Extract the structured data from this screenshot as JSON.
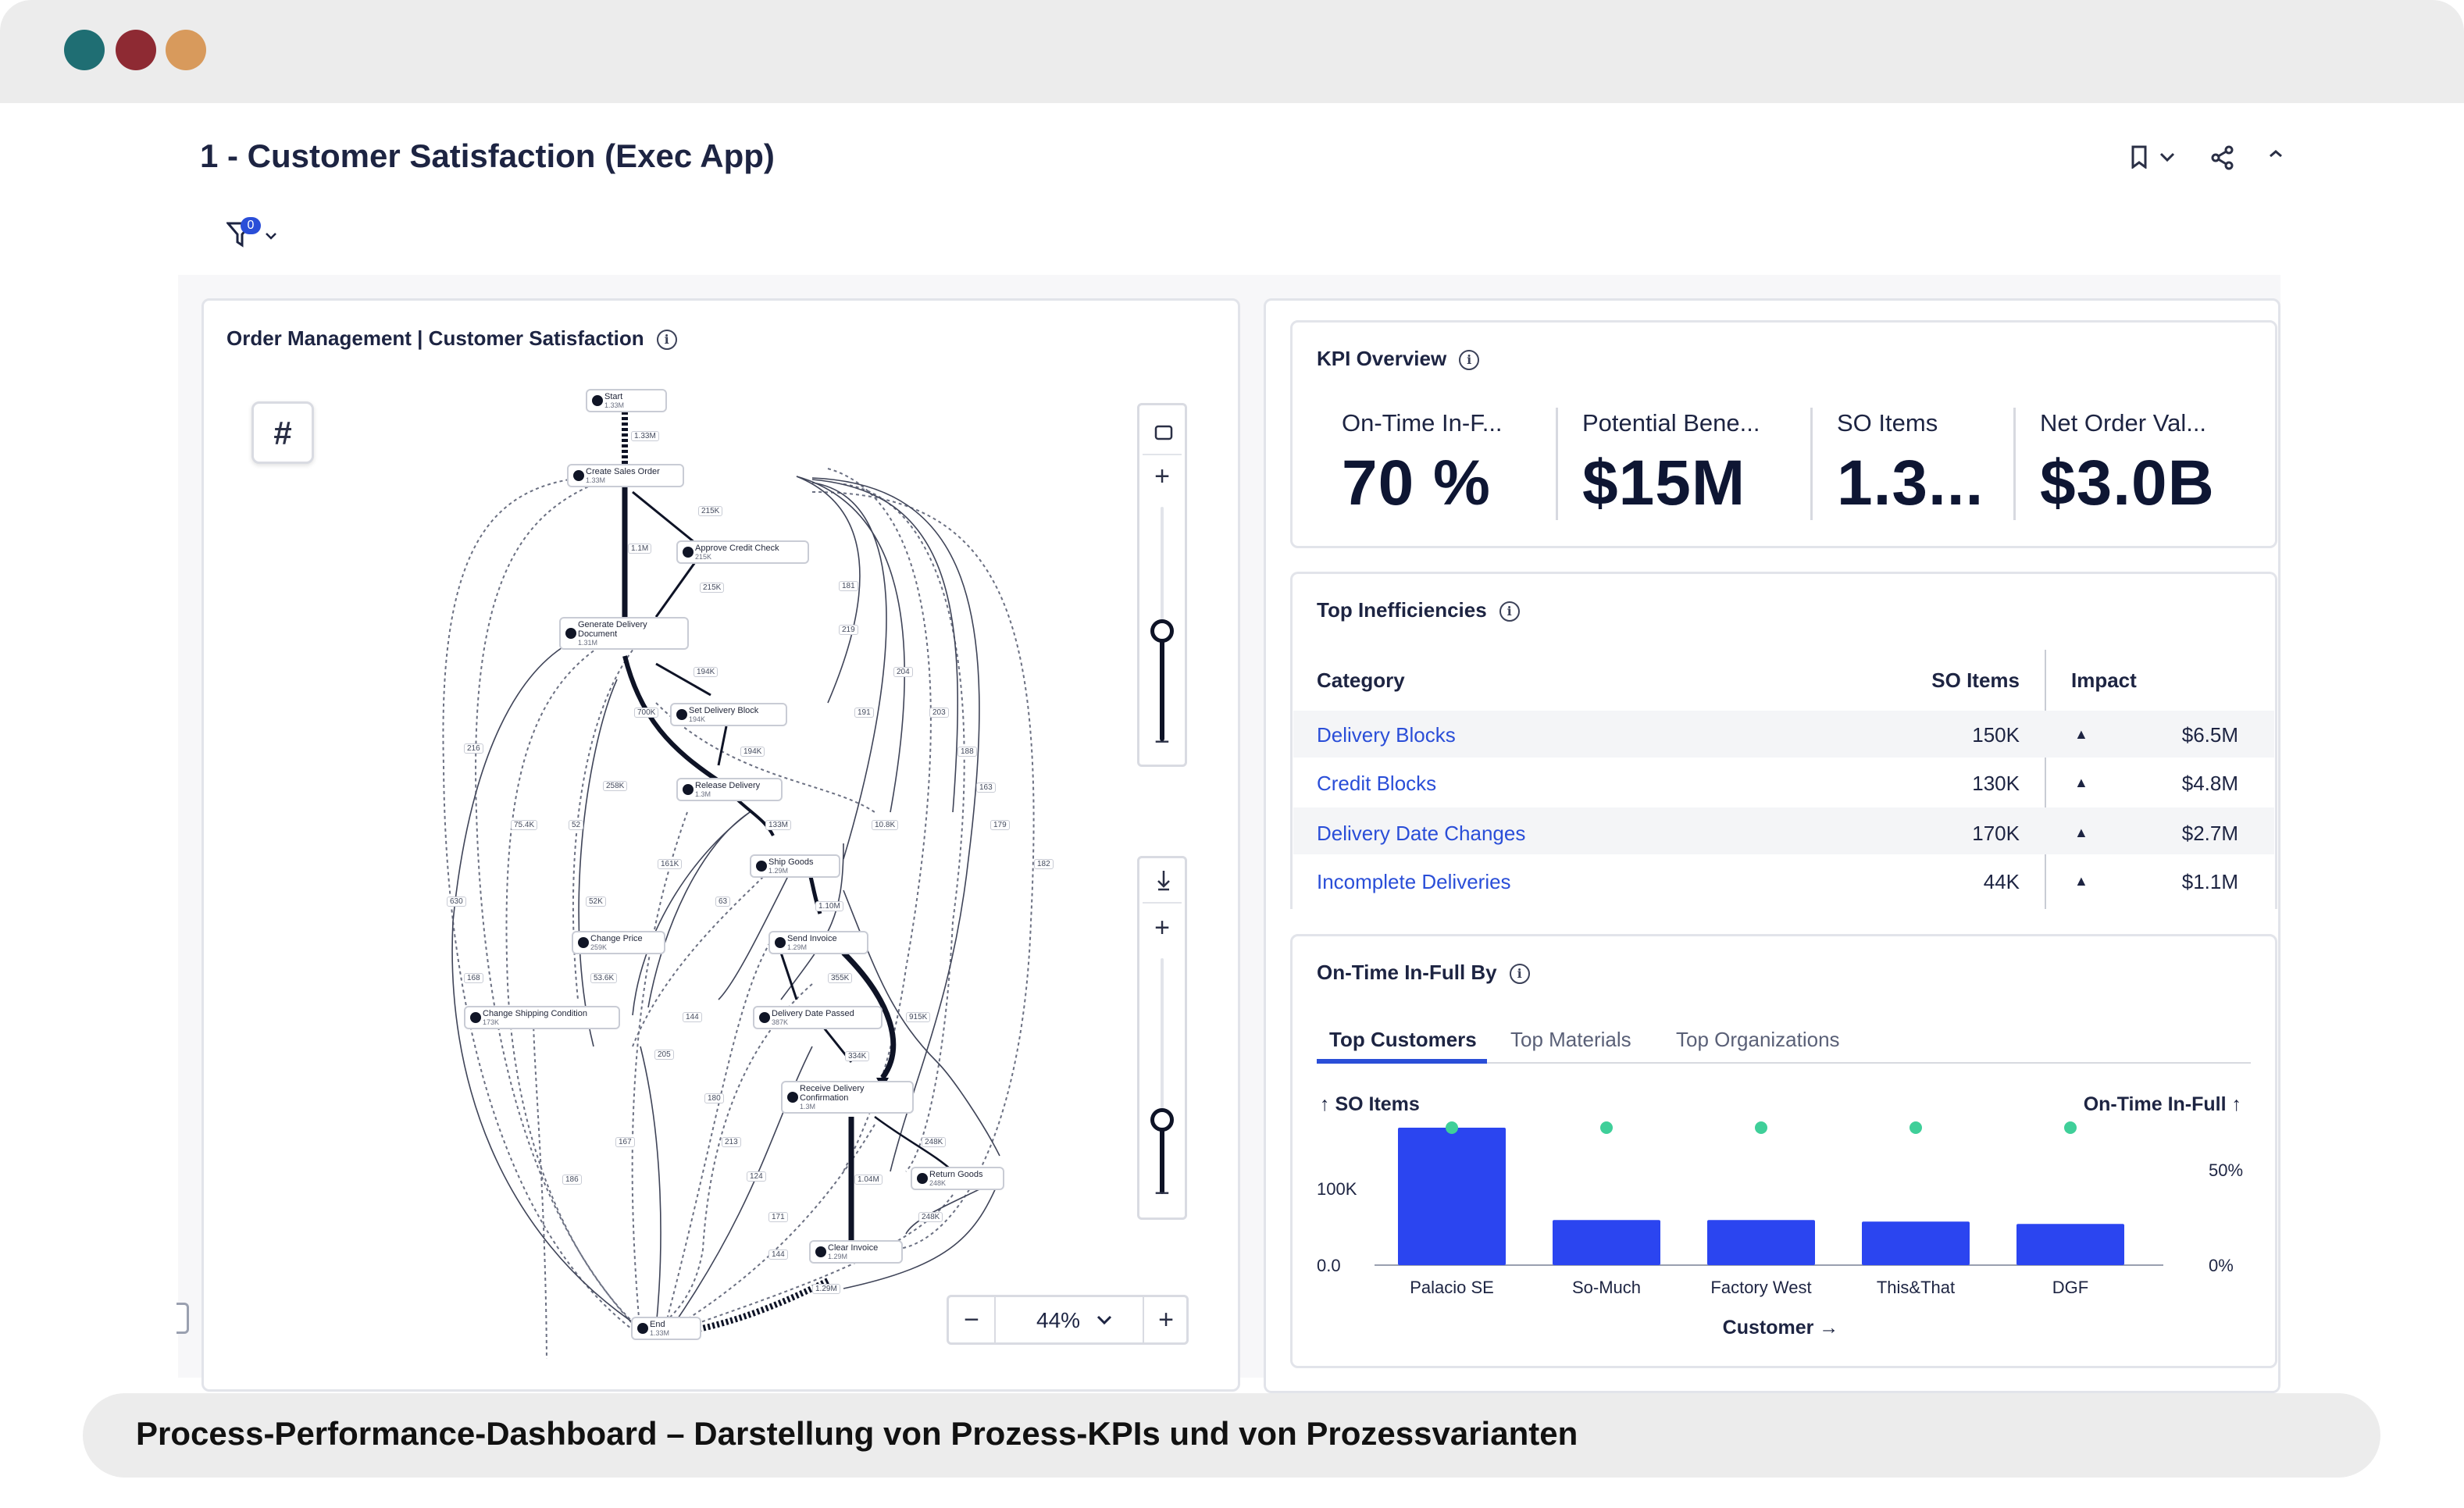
{
  "window": {
    "dot_colors": [
      "#1f6e73",
      "#8e2a33",
      "#d89a5c"
    ]
  },
  "header": {
    "title": "1 - Customer Satisfaction (Exec App)",
    "filter_count": "0",
    "icons": [
      "bookmark-icon",
      "chevron-down-icon",
      "share-icon",
      "collapse-icon"
    ]
  },
  "process_panel": {
    "title": "Order Management | Customer Satisfaction",
    "info_icon": "i",
    "hash_button": "#",
    "zoom_value": "44%",
    "zoom_minus": "−",
    "zoom_plus": "+",
    "slider_plus": "+",
    "slider_minus": "−",
    "nodes": [
      {
        "label": "Start",
        "sub": "1.33M"
      },
      {
        "label": "Create Sales Order",
        "sub": "1.33M"
      },
      {
        "label": "Approve Credit Check",
        "sub": "215K"
      },
      {
        "label": "Generate Delivery Document",
        "sub": "1.31M"
      },
      {
        "label": "Set Delivery Block",
        "sub": "194K"
      },
      {
        "label": "Release Delivery",
        "sub": "1.3M"
      },
      {
        "label": "Ship Goods",
        "sub": "1.29M"
      },
      {
        "label": "Change Price",
        "sub": "259K"
      },
      {
        "label": "Send Invoice",
        "sub": "1.29M"
      },
      {
        "label": "Change Shipping Condition",
        "sub": "173K"
      },
      {
        "label": "Delivery Date Passed",
        "sub": "387K"
      },
      {
        "label": "Receive Delivery Confirmation",
        "sub": "1.3M"
      },
      {
        "label": "Return Goods",
        "sub": "248K"
      },
      {
        "label": "Clear Invoice",
        "sub": "1.29M"
      },
      {
        "label": "End",
        "sub": "1.33M"
      }
    ],
    "edge_labels": [
      "1.33M",
      "215K",
      "1.1M",
      "215K",
      "181",
      "219",
      "204",
      "194K",
      "700K",
      "194K",
      "191",
      "203",
      "216",
      "258K",
      "133M",
      "188",
      "163",
      "75.4K",
      "52",
      "10.8K",
      "179",
      "161K",
      "1.10M",
      "182",
      "630",
      "52K",
      "63",
      "168",
      "53.6K",
      "355K",
      "915K",
      "144",
      "205",
      "180",
      "334K",
      "213",
      "167",
      "124",
      "248K",
      "186",
      "1.04M",
      "171",
      "248K",
      "144",
      "1.29M"
    ]
  },
  "kpi_overview": {
    "title": "KPI Overview",
    "kpis": [
      {
        "label": "On-Time In-F...",
        "value": "70 %"
      },
      {
        "label": "Potential Bene...",
        "value": "$15M"
      },
      {
        "label": "SO Items",
        "value": "1.3..."
      },
      {
        "label": "Net Order Val...",
        "value": "$3.0B"
      }
    ]
  },
  "inefficiencies": {
    "title": "Top Inefficiencies",
    "headers": {
      "category": "Category",
      "so_items": "SO Items",
      "impact": "Impact"
    },
    "rows": [
      {
        "category": "Delivery Blocks",
        "so_items": "150K",
        "impact": "$6.5M"
      },
      {
        "category": "Credit Blocks",
        "so_items": "130K",
        "impact": "$4.8M"
      },
      {
        "category": "Delivery Date Changes",
        "so_items": "170K",
        "impact": "$2.7M"
      },
      {
        "category": "Incomplete Deliveries",
        "so_items": "44K",
        "impact": "$1.1M"
      }
    ]
  },
  "otif": {
    "title": "On-Time In-Full By",
    "tabs": [
      "Top Customers",
      "Top Materials",
      "Top Organizations"
    ],
    "left_axis_title": "↑ SO Items",
    "right_axis_title": "On-Time In-Full ↑",
    "x_title": "Customer →",
    "bar_color": "#2b45f0",
    "point_color": "#3fcf99"
  },
  "chart_data": {
    "type": "bar",
    "categories": [
      "Palacio SE",
      "So-Much",
      "Factory West",
      "This&That",
      "DGF"
    ],
    "series": [
      {
        "values": [
          180000,
          59000,
          59000,
          57000,
          54000
        ]
      },
      {
        "values": [
          0.72,
          0.72,
          0.72,
          0.72,
          0.72
        ]
      }
    ],
    "xlabel": "Customer →",
    "ylabel": "↑ SO Items",
    "y2label": "On-Time In-Full ↑",
    "yticks": [
      "0.0",
      "100K"
    ],
    "y2ticks": [
      "0%",
      "50%"
    ],
    "ylim": [
      0,
      180000
    ],
    "y2lim": [
      0,
      0.72
    ]
  },
  "caption": {
    "text": "Process-Performance-Dashboard – Darstellung von Prozess-KPIs und von Prozessvarianten"
  }
}
